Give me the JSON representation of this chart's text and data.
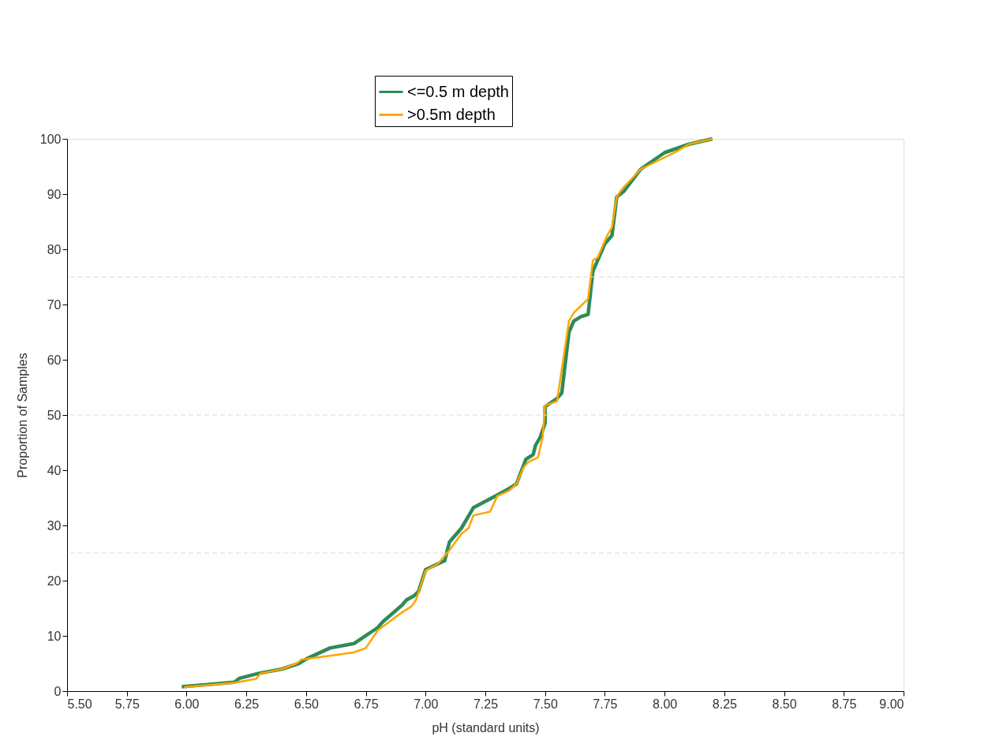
{
  "chart_data": {
    "type": "line",
    "xlabel": "pH (standard units)",
    "ylabel": "Proportion of Samples",
    "xlim": [
      5.5,
      9.0
    ],
    "ylim": [
      0,
      100
    ],
    "xticks": [
      {
        "value": 5.5,
        "label": "5.50"
      },
      5.75,
      {
        "value": 6.0,
        "label": "6.00"
      },
      6.25,
      {
        "value": 6.5,
        "label": "6.50"
      },
      6.75,
      {
        "value": 7.0,
        "label": "7.00"
      },
      7.25,
      {
        "value": 7.5,
        "label": "7.50"
      },
      7.75,
      {
        "value": 8.0,
        "label": "8.00"
      },
      8.25,
      {
        "value": 8.5,
        "label": "8.50"
      },
      8.75,
      {
        "value": 9.0,
        "label": "9.00"
      }
    ],
    "yticks": [
      0,
      10,
      20,
      30,
      40,
      50,
      60,
      70,
      80,
      90,
      100
    ],
    "grid": false,
    "legend": "top",
    "marker": "none",
    "line_style": "solid",
    "ref_lines": [
      {
        "axis": "y",
        "value": 25,
        "color": "#d9d9d9",
        "line_style": "dashed"
      },
      {
        "axis": "y",
        "value": 50,
        "color": "#d9d9d9",
        "line_style": "dashed"
      },
      {
        "axis": "y",
        "value": 75,
        "color": "#d9d9d9",
        "line_style": "dashed"
      }
    ],
    "series": [
      {
        "name": "<=0.5 m depth",
        "color": "#2e8b57",
        "x": [
          5.98,
          6.2,
          6.22,
          6.3,
          6.4,
          6.47,
          6.5,
          6.6,
          6.7,
          6.8,
          6.82,
          6.9,
          6.92,
          6.95,
          6.97,
          7.0,
          7.08,
          7.1,
          7.15,
          7.2,
          7.3,
          7.35,
          7.38,
          7.42,
          7.45,
          7.46,
          7.48,
          7.5,
          7.5,
          7.55,
          7.57,
          7.6,
          7.62,
          7.65,
          7.68,
          7.7,
          7.72,
          7.75,
          7.78,
          7.8,
          7.83,
          7.9,
          8.0,
          8.1,
          8.2
        ],
        "values": [
          0.8,
          1.6,
          2.3,
          3.2,
          4.0,
          5.0,
          5.8,
          7.8,
          8.6,
          11.5,
          12.5,
          15.5,
          16.5,
          17.2,
          18,
          22,
          23.6,
          27,
          29.5,
          33.2,
          35.5,
          36.7,
          37.5,
          42,
          42.8,
          44.5,
          46,
          48.5,
          51.5,
          53,
          54,
          65,
          67,
          67.8,
          68.2,
          76,
          78,
          81,
          82.5,
          89.5,
          90.5,
          94.5,
          97.5,
          99,
          100
        ]
      },
      {
        "name": ">0.5m depth",
        "color": "#ffa500",
        "x": [
          5.99,
          6.2,
          6.29,
          6.31,
          6.4,
          6.46,
          6.48,
          6.6,
          6.7,
          6.75,
          6.8,
          6.9,
          6.94,
          6.96,
          7.0,
          7.05,
          7.1,
          7.15,
          7.18,
          7.2,
          7.27,
          7.3,
          7.35,
          7.38,
          7.41,
          7.43,
          7.47,
          7.49,
          7.5,
          7.55,
          7.6,
          7.62,
          7.68,
          7.7,
          7.72,
          7.76,
          7.78,
          7.8,
          7.82,
          7.9,
          8.05,
          8.1,
          8.2
        ],
        "values": [
          0.7,
          1.5,
          2.2,
          3.2,
          4.0,
          5.0,
          5.7,
          6.4,
          7.0,
          7.8,
          11,
          14.2,
          15.3,
          16.5,
          21.8,
          23,
          25.5,
          28.5,
          29.5,
          31.8,
          32.5,
          35.3,
          36.3,
          37.5,
          40.5,
          41.5,
          42.3,
          46,
          51.7,
          52.5,
          67,
          68.5,
          71,
          78,
          78.5,
          82.5,
          84,
          89.5,
          90.8,
          94.5,
          97.7,
          99,
          100
        ]
      }
    ]
  }
}
